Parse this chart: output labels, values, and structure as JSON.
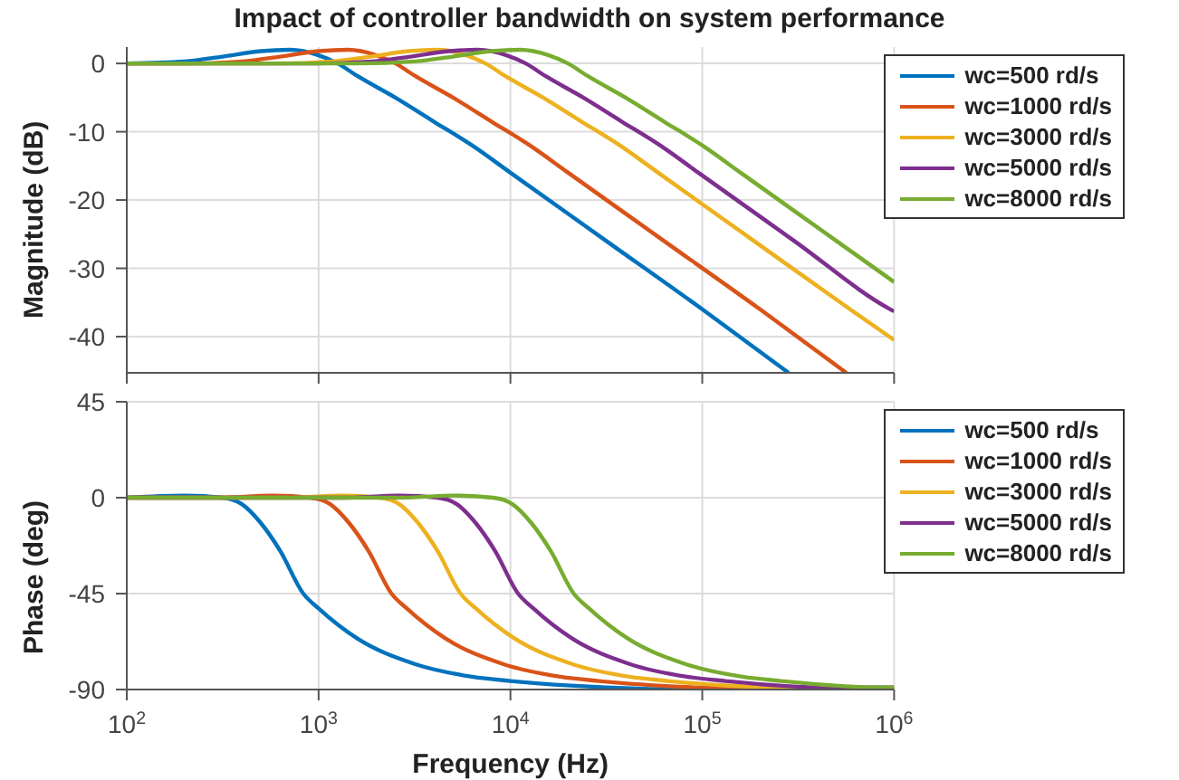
{
  "chart_data": [
    {
      "type": "line",
      "title": "Impact of controller bandwidth on system performance",
      "ylabel": "Magnitude (dB)",
      "xlim": [
        100,
        1000000
      ],
      "xticks": [
        100,
        1000,
        10000,
        100000,
        1000000
      ],
      "log": "x",
      "ylim": [
        -45.3,
        2.4
      ],
      "yticks": [
        -40,
        -30,
        -20,
        -10,
        0
      ],
      "grid": true,
      "legend": "top right",
      "tick_labels": "y",
      "series": [
        {
          "name": "wc=500 rd/s",
          "color": "#0072bd",
          "x": [
            100,
            200,
            316,
            501,
            708,
            1000,
            1259,
            1585,
            2512,
            3981,
            6310,
            10000,
            31623,
            100000,
            281838
          ],
          "values": [
            0,
            0.3,
            1,
            1.8,
            2,
            1.2,
            0,
            -1.8,
            -5,
            -8.5,
            -12,
            -16,
            -26,
            -36,
            -45.3
          ]
        },
        {
          "name": "wc=1000 rd/s",
          "color": "#d95319",
          "x": [
            100,
            200,
            400,
            632,
            1002,
            1416,
            2000,
            2518,
            3170,
            5024,
            7962,
            12620,
            20000,
            63246,
            200000,
            563676
          ],
          "values": [
            0,
            0,
            0.3,
            1,
            1.8,
            2,
            1.2,
            0,
            -1.8,
            -5,
            -8.5,
            -12,
            -16,
            -26,
            -36,
            -45.3
          ]
        },
        {
          "name": "wc=3000 rd/s",
          "color": "#edb120",
          "x": [
            100,
            589,
            1178,
            1861,
            2951,
            4170,
            5890,
            7416,
            9336,
            14796,
            23448,
            37166,
            58900,
            186259,
            589000,
            1000000
          ],
          "values": [
            0,
            0,
            0.3,
            1,
            1.8,
            2,
            1.2,
            0,
            -1.8,
            -5,
            -8.5,
            -12,
            -16,
            -26,
            -36,
            -40.5
          ]
        },
        {
          "name": "wc=5000 rd/s",
          "color": "#7e2f8e",
          "x": [
            100,
            955,
            1910,
            3018,
            4785,
            6761,
            9550,
            12023,
            15137,
            23990,
            38019,
            60261,
            95500,
            301995,
            955000,
            1000000
          ],
          "values": [
            0,
            0,
            0.3,
            1,
            1.8,
            2,
            1.2,
            0,
            -1.8,
            -5,
            -8.5,
            -12,
            -16,
            -26,
            -36,
            -36.3
          ]
        },
        {
          "name": "wc=8000 rd/s",
          "color": "#77ac30",
          "x": [
            100,
            1585,
            3170,
            5009,
            7941,
            11222,
            15850,
            19955,
            25122,
            39815,
            63099,
            100000,
            158500,
            501187,
            1000000
          ],
          "values": [
            0,
            0,
            0.3,
            1,
            1.8,
            2,
            1.2,
            0,
            -1.8,
            -5,
            -8.5,
            -12,
            -16,
            -26,
            -32
          ]
        }
      ]
    },
    {
      "type": "line",
      "ylabel": "Phase (deg)",
      "xlabel": "Frequency (Hz)",
      "xlim": [
        100,
        1000000
      ],
      "xticks": [
        {
          "value": 100,
          "label": "10$^{2}$"
        },
        {
          "value": 1000,
          "label": "10$^{3}$"
        },
        {
          "value": 10000,
          "label": "10$^{4}$"
        },
        {
          "value": 100000,
          "label": "10$^{5}$"
        },
        {
          "value": 1000000,
          "label": "10$^{6}$"
        }
      ],
      "log": "x",
      "ylim": [
        -90,
        45
      ],
      "yticks": [
        -90,
        -45,
        0,
        45
      ],
      "grid": true,
      "legend": "top right",
      "series": [
        {
          "name": "wc=500 rd/s",
          "color": "#0072bd",
          "x": [
            100,
            200,
            316,
            398,
            501,
            631,
            832,
            1000,
            1585,
            3162,
            6310,
            10000,
            31623,
            100000,
            1000000
          ],
          "values": [
            0,
            1,
            0,
            -3,
            -12,
            -25,
            -45,
            -52,
            -66,
            -78,
            -84,
            -86,
            -89,
            -90,
            -90
          ]
        },
        {
          "name": "wc=1000 rd/s",
          "color": "#d95319",
          "x": [
            100,
            288,
            577,
            912,
            1148,
            1445,
            1820,
            2399,
            2884,
            4571,
            9120,
            18197,
            28840,
            91201,
            288400,
            1000000
          ],
          "values": [
            0,
            0,
            1,
            0,
            -3,
            -12,
            -25,
            -45,
            -52,
            -66,
            -78,
            -84,
            -86,
            -89,
            -90,
            -90
          ]
        },
        {
          "name": "wc=3000 rd/s",
          "color": "#edb120",
          "x": [
            100,
            661,
            1321,
            2089,
            2630,
            3311,
            4169,
            5495,
            6607,
            10471,
            20893,
            41687,
            66070,
            208930,
            660700,
            1000000
          ],
          "values": [
            0,
            0,
            1,
            0,
            -3,
            -12,
            -25,
            -45,
            -52,
            -66,
            -78,
            -84,
            -86,
            -89,
            -90,
            -90
          ]
        },
        {
          "name": "wc=5000 rd/s",
          "color": "#7e2f8e",
          "x": [
            100,
            1318,
            2636,
            4169,
            5248,
            6607,
            8318,
            10965,
            13180,
            20893,
            41687,
            83176,
            131800,
            416870,
            1000000
          ],
          "values": [
            0,
            0,
            1,
            0,
            -3,
            -12,
            -25,
            -45,
            -52,
            -66,
            -78,
            -84,
            -86,
            -89,
            -89
          ]
        },
        {
          "name": "wc=8000 rd/s",
          "color": "#77ac30",
          "x": [
            100,
            2570,
            5140,
            8128,
            10233,
            12882,
            16218,
            21380,
            25700,
            40738,
            81283,
            162181,
            257000,
            812831,
            1000000
          ],
          "values": [
            0,
            0,
            1,
            0,
            -3,
            -12,
            -25,
            -45,
            -52,
            -66,
            -78,
            -84,
            -86,
            -89,
            -89
          ]
        }
      ]
    }
  ]
}
